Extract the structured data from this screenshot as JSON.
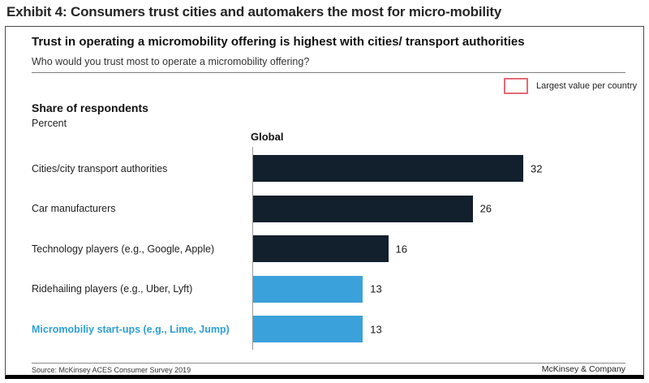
{
  "exhibit_title": "Exhibit 4: Consumers trust cities and automakers the most for micro-mobility",
  "panel": {
    "title": "Trust in operating a micromobility offering is highest with cities/ transport authorities",
    "question": "Who would you trust most to operate a micromobility offering?",
    "legend_label": "Largest value per country",
    "metric_title": "Share of respondents",
    "metric_unit": "Percent",
    "source": "Source: McKinsey ACES Consumer Survey 2019",
    "brand": "McKinsey & Company"
  },
  "colors": {
    "dark_bar": "#121F2C",
    "light_bar": "#3BA1DB",
    "highlight_label": "#2D9FD9",
    "legend_border": "#E56A76"
  },
  "chart_data": {
    "type": "bar",
    "orientation": "horizontal",
    "title": "Share of respondents",
    "xlabel": "Percent",
    "ylabel": "",
    "column_header": "Global",
    "categories": [
      "Cities/city transport authorities",
      "Car manufacturers",
      "Technology players (e.g., Google, Apple)",
      "Ridehailing players (e.g., Uber, Lyft)",
      "Micromobiliy start-ups (e.g., Lime, Jump)"
    ],
    "values": [
      32,
      26,
      16,
      13,
      13
    ],
    "bar_colors": [
      "#121F2C",
      "#121F2C",
      "#121F2C",
      "#3BA1DB",
      "#3BA1DB"
    ],
    "category_label_colors": [
      "#1f1f1f",
      "#1f1f1f",
      "#1f1f1f",
      "#1f1f1f",
      "#2D9FD9"
    ],
    "category_label_bold": [
      false,
      false,
      false,
      false,
      true
    ],
    "value_labels": true,
    "xlim": [
      0,
      32
    ],
    "grid": false,
    "legend": "Largest value per country",
    "legend_position": "top-right"
  }
}
